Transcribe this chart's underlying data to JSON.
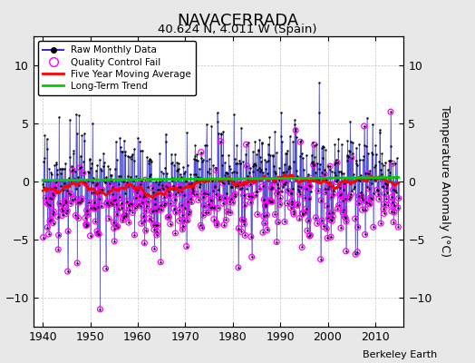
{
  "title": "NAVACERRADA",
  "subtitle": "40.624 N, 4.011 W (Spain)",
  "ylabel": "Temperature Anomaly (°C)",
  "attribution": "Berkeley Earth",
  "start_year": 1940,
  "end_year": 2014,
  "ylim": [
    -12.5,
    12.5
  ],
  "yticks": [
    -10,
    -5,
    0,
    5,
    10
  ],
  "xticks": [
    1940,
    1950,
    1960,
    1970,
    1980,
    1990,
    2000,
    2010
  ],
  "fig_bg_color": "#e8e8e8",
  "plot_bg_color": "#ffffff",
  "raw_line_color": "#3333cc",
  "raw_dot_color": "#000000",
  "qc_fail_color": "#ff00ff",
  "moving_avg_color": "#ff0000",
  "trend_color": "#00cc00",
  "legend_items": [
    "Raw Monthly Data",
    "Quality Control Fail",
    "Five Year Moving Average",
    "Long-Term Trend"
  ]
}
